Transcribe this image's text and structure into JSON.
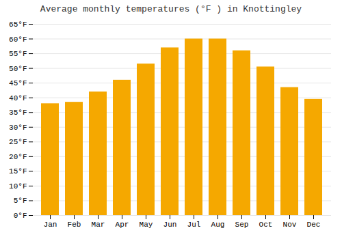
{
  "chart_data": {
    "type": "bar",
    "title": "Average monthly temperatures (°F ) in Knottingley",
    "categories": [
      "Jan",
      "Feb",
      "Mar",
      "Apr",
      "May",
      "Jun",
      "Jul",
      "Aug",
      "Sep",
      "Oct",
      "Nov",
      "Dec"
    ],
    "values": [
      38,
      38.5,
      42,
      46,
      51.5,
      57,
      60,
      60,
      56,
      50.5,
      43.5,
      39.5
    ],
    "color": "#F5A800",
    "ylim": [
      0,
      65
    ],
    "yticks": [
      {
        "value": 0,
        "label": "0°F"
      },
      {
        "value": 5,
        "label": "5°F"
      },
      {
        "value": 10,
        "label": "10°F"
      },
      {
        "value": 15,
        "label": "15°F"
      },
      {
        "value": 20,
        "label": "20°F"
      },
      {
        "value": 25,
        "label": "25°F"
      },
      {
        "value": 30,
        "label": "30°F"
      },
      {
        "value": 35,
        "label": "35°F"
      },
      {
        "value": 40,
        "label": "40°F"
      },
      {
        "value": 45,
        "label": "45°F"
      },
      {
        "value": 50,
        "label": "50°F"
      },
      {
        "value": 55,
        "label": "55°F"
      },
      {
        "value": 60,
        "label": "60°F"
      },
      {
        "value": 65,
        "label": "65°F"
      }
    ],
    "grid": true
  }
}
